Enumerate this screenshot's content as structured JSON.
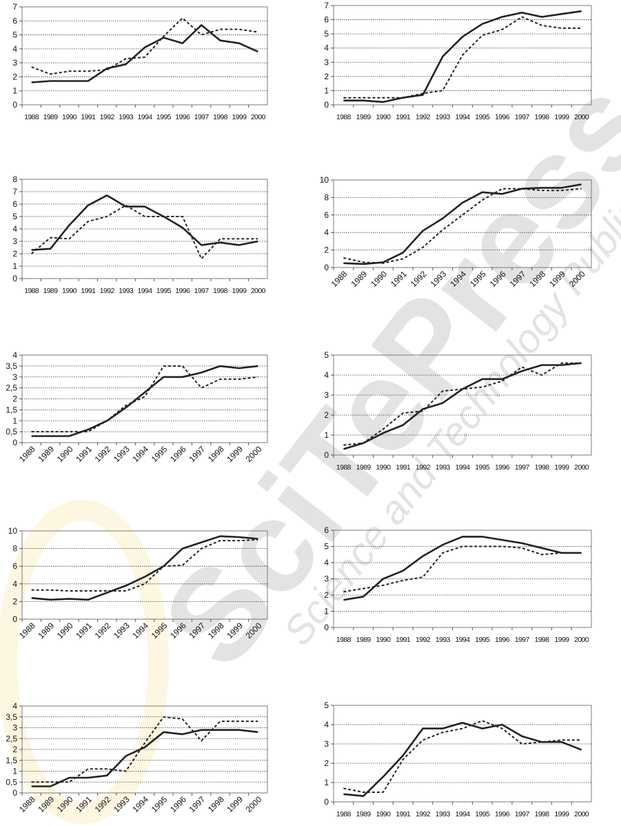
{
  "watermark": {
    "line1": "SciTePress",
    "line2": "Science and Technology Publications"
  },
  "chart_data": [
    {
      "type": "line",
      "x": [
        "1988",
        "1989",
        "1990",
        "1991",
        "1992",
        "1993",
        "1994",
        "1995",
        "1996",
        "1997",
        "1998",
        "1999",
        "2000"
      ],
      "ylim": [
        0,
        7
      ],
      "yticks": [
        "0",
        "1",
        "2",
        "3",
        "4",
        "5",
        "6",
        "7"
      ],
      "xlabel_rotation": "horizontal",
      "grid": true,
      "series": [
        {
          "style": "solid",
          "values": [
            1.6,
            1.7,
            1.7,
            1.7,
            2.6,
            2.9,
            4.1,
            4.8,
            4.4,
            5.7,
            4.6,
            4.4,
            3.8
          ]
        },
        {
          "style": "dashed",
          "values": [
            2.7,
            2.2,
            2.4,
            2.4,
            2.5,
            3.3,
            3.4,
            4.9,
            6.2,
            5.0,
            5.4,
            5.4,
            5.2
          ]
        }
      ]
    },
    {
      "type": "line",
      "x": [
        "1988",
        "1989",
        "1990",
        "1991",
        "1992",
        "1993",
        "1994",
        "1995",
        "1996",
        "1997",
        "1998",
        "1999",
        "2000"
      ],
      "ylim": [
        0,
        7
      ],
      "yticks": [
        "0",
        "1",
        "2",
        "3",
        "4",
        "5",
        "6",
        "7"
      ],
      "xlabel_rotation": "horizontal",
      "grid": true,
      "series": [
        {
          "style": "solid",
          "values": [
            0.3,
            0.3,
            0.2,
            0.5,
            0.7,
            3.4,
            4.8,
            5.7,
            6.2,
            6.5,
            6.2,
            6.4,
            6.6
          ]
        },
        {
          "style": "dashed",
          "values": [
            0.5,
            0.5,
            0.5,
            0.5,
            0.8,
            1.0,
            3.5,
            4.9,
            5.3,
            6.2,
            5.6,
            5.4,
            5.4
          ]
        }
      ]
    },
    {
      "type": "line",
      "x": [
        "1988",
        "1989",
        "1990",
        "1991",
        "1992",
        "1993",
        "1994",
        "1995",
        "1996",
        "1997",
        "1998",
        "1999",
        "2000"
      ],
      "ylim": [
        0,
        8
      ],
      "yticks": [
        "0",
        "1",
        "2",
        "3",
        "4",
        "5",
        "6",
        "7",
        "8"
      ],
      "xlabel_rotation": "horizontal",
      "grid": true,
      "series": [
        {
          "style": "solid",
          "values": [
            2.3,
            2.4,
            4.3,
            5.9,
            6.7,
            5.8,
            5.8,
            5.0,
            4.1,
            2.7,
            2.9,
            2.7,
            3.0
          ]
        },
        {
          "style": "dashed",
          "values": [
            2.0,
            3.3,
            3.2,
            4.6,
            5.0,
            5.9,
            5.0,
            5.0,
            5.0,
            1.6,
            3.2,
            3.2,
            3.2
          ]
        }
      ]
    },
    {
      "type": "line",
      "x": [
        "1988",
        "1989",
        "1990",
        "1991",
        "1992",
        "1993",
        "1994",
        "1995",
        "1996",
        "1997",
        "1998",
        "1999",
        "2000"
      ],
      "ylim": [
        0,
        10
      ],
      "yticks": [
        "0",
        "2",
        "4",
        "6",
        "8",
        "10"
      ],
      "xlabel_rotation": "diagonal",
      "grid": true,
      "series": [
        {
          "style": "solid",
          "values": [
            0.5,
            0.4,
            0.6,
            1.7,
            4.2,
            5.6,
            7.4,
            8.6,
            8.4,
            9.0,
            9.1,
            9.1,
            9.5
          ]
        },
        {
          "style": "dashed",
          "values": [
            1.1,
            0.6,
            0.5,
            1.0,
            2.3,
            4.3,
            6.0,
            7.7,
            9.0,
            9.0,
            8.8,
            8.8,
            9.0
          ]
        }
      ]
    },
    {
      "type": "line",
      "x": [
        "1988",
        "1989",
        "1990",
        "1991",
        "1992",
        "1993",
        "1994",
        "1995",
        "1996",
        "1997",
        "1998",
        "1999",
        "2000"
      ],
      "ylim": [
        0,
        4
      ],
      "yticks": [
        "0",
        "0,5",
        "1",
        "1,5",
        "2",
        "2,5",
        "3",
        "3,5",
        "4"
      ],
      "xlabel_rotation": "diagonal",
      "grid": true,
      "series": [
        {
          "style": "solid",
          "values": [
            0.3,
            0.3,
            0.3,
            0.6,
            1.0,
            1.6,
            2.3,
            3.0,
            3.0,
            3.2,
            3.5,
            3.4,
            3.5
          ]
        },
        {
          "style": "dashed",
          "values": [
            0.5,
            0.5,
            0.5,
            0.5,
            1.0,
            1.7,
            2.1,
            3.5,
            3.5,
            2.5,
            2.9,
            2.9,
            3.0
          ]
        }
      ]
    },
    {
      "type": "line",
      "x": [
        "1988",
        "1989",
        "1990",
        "1991",
        "1992",
        "1993",
        "1994",
        "1995",
        "1996",
        "1997",
        "1998",
        "1999",
        "2000"
      ],
      "ylim": [
        0,
        5
      ],
      "yticks": [
        "0",
        "1",
        "2",
        "3",
        "4",
        "5"
      ],
      "xlabel_rotation": "horizontal",
      "grid": true,
      "series": [
        {
          "style": "solid",
          "values": [
            0.3,
            0.6,
            1.1,
            1.5,
            2.3,
            2.6,
            3.3,
            3.8,
            3.8,
            4.2,
            4.5,
            4.5,
            4.6
          ]
        },
        {
          "style": "dashed",
          "values": [
            0.5,
            0.6,
            1.3,
            2.1,
            2.2,
            3.2,
            3.3,
            3.4,
            3.7,
            4.4,
            4.0,
            4.6,
            4.6
          ]
        }
      ]
    },
    {
      "type": "line",
      "x": [
        "1988",
        "1989",
        "1990",
        "1991",
        "1992",
        "1993",
        "1994",
        "1995",
        "1996",
        "1997",
        "1998",
        "1999",
        "2000"
      ],
      "ylim": [
        0,
        10
      ],
      "yticks": [
        "0",
        "2",
        "4",
        "6",
        "8",
        "10"
      ],
      "xlabel_rotation": "diagonal",
      "grid": true,
      "series": [
        {
          "style": "solid",
          "values": [
            2.4,
            2.2,
            2.3,
            2.2,
            3.0,
            3.8,
            4.8,
            6.0,
            8.0,
            8.7,
            9.4,
            9.3,
            9.1
          ]
        },
        {
          "style": "dashed",
          "values": [
            3.3,
            3.3,
            3.2,
            3.2,
            3.2,
            3.2,
            4.0,
            6.0,
            6.1,
            8.0,
            8.9,
            8.9,
            9.0
          ]
        }
      ]
    },
    {
      "type": "line",
      "x": [
        "1988",
        "1989",
        "1990",
        "1991",
        "1992",
        "1993",
        "1994",
        "1995",
        "1996",
        "1997",
        "1998",
        "1999",
        "2000"
      ],
      "ylim": [
        0,
        6
      ],
      "yticks": [
        "0",
        "1",
        "2",
        "3",
        "4",
        "5",
        "6"
      ],
      "xlabel_rotation": "horizontal",
      "grid": true,
      "series": [
        {
          "style": "solid",
          "values": [
            1.7,
            1.9,
            3.0,
            3.5,
            4.4,
            5.1,
            5.6,
            5.6,
            5.4,
            5.2,
            4.9,
            4.6,
            4.6
          ]
        },
        {
          "style": "dashed",
          "values": [
            2.2,
            2.4,
            2.6,
            2.9,
            3.1,
            4.6,
            5.0,
            5.0,
            5.0,
            4.9,
            4.5,
            4.6,
            4.6
          ]
        }
      ]
    },
    {
      "type": "line",
      "x": [
        "1988",
        "1989",
        "1990",
        "1991",
        "1992",
        "1993",
        "1994",
        "1995",
        "1996",
        "1997",
        "1998",
        "1999",
        "2000"
      ],
      "ylim": [
        0,
        4
      ],
      "yticks": [
        "0",
        "0,5",
        "1",
        "1,5",
        "2",
        "2,5",
        "3",
        "3,5",
        "4"
      ],
      "xlabel_rotation": "diagonal",
      "grid": true,
      "series": [
        {
          "style": "solid",
          "values": [
            0.3,
            0.3,
            0.7,
            0.7,
            0.8,
            1.7,
            2.1,
            2.8,
            2.7,
            2.9,
            2.9,
            2.9,
            2.8
          ]
        },
        {
          "style": "dashed",
          "values": [
            0.5,
            0.5,
            0.5,
            1.1,
            1.1,
            1.0,
            2.3,
            3.5,
            3.4,
            2.4,
            3.3,
            3.3,
            3.3
          ]
        }
      ]
    },
    {
      "type": "line",
      "x": [
        "1988",
        "1989",
        "1990",
        "1991",
        "1992",
        "1993",
        "1994",
        "1995",
        "1996",
        "1997",
        "1998",
        "1999",
        "2000"
      ],
      "ylim": [
        0,
        5
      ],
      "yticks": [
        "0",
        "1",
        "2",
        "3",
        "4",
        "5"
      ],
      "xlabel_rotation": "horizontal",
      "grid": true,
      "series": [
        {
          "style": "solid",
          "values": [
            0.4,
            0.3,
            1.3,
            2.4,
            3.8,
            3.8,
            4.1,
            3.8,
            4.0,
            3.4,
            3.1,
            3.1,
            2.7
          ]
        },
        {
          "style": "dashed",
          "values": [
            0.7,
            0.5,
            0.5,
            2.2,
            3.2,
            3.6,
            3.8,
            4.2,
            3.8,
            3.0,
            3.1,
            3.2,
            3.2
          ]
        }
      ]
    }
  ]
}
